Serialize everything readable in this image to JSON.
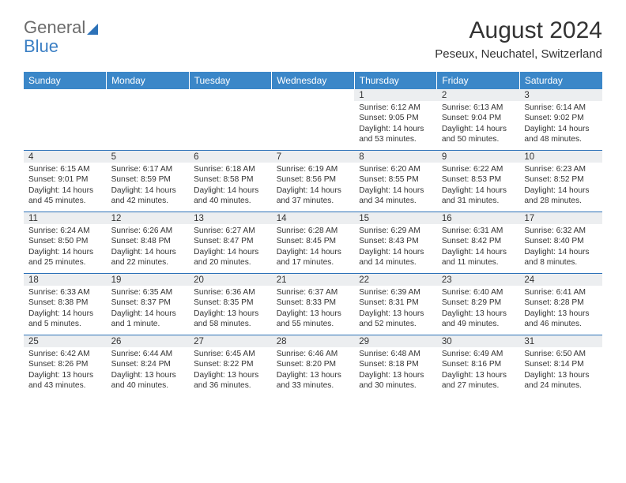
{
  "logo": {
    "part1": "General",
    "part2": "Blue"
  },
  "title": "August 2024",
  "subtitle": "Peseux, Neuchatel, Switzerland",
  "colors": {
    "header_bg": "#3b87c8",
    "rule": "#2d72b8",
    "daynum_bg": "#eceef0",
    "text": "#333333",
    "logo_gray": "#6b6b6b",
    "logo_blue": "#3b7fc4"
  },
  "weekdays": [
    "Sunday",
    "Monday",
    "Tuesday",
    "Wednesday",
    "Thursday",
    "Friday",
    "Saturday"
  ],
  "weeks": [
    [
      {
        "day": "",
        "lines": []
      },
      {
        "day": "",
        "lines": []
      },
      {
        "day": "",
        "lines": []
      },
      {
        "day": "",
        "lines": []
      },
      {
        "day": "1",
        "lines": [
          "Sunrise: 6:12 AM",
          "Sunset: 9:05 PM",
          "Daylight: 14 hours and 53 minutes."
        ]
      },
      {
        "day": "2",
        "lines": [
          "Sunrise: 6:13 AM",
          "Sunset: 9:04 PM",
          "Daylight: 14 hours and 50 minutes."
        ]
      },
      {
        "day": "3",
        "lines": [
          "Sunrise: 6:14 AM",
          "Sunset: 9:02 PM",
          "Daylight: 14 hours and 48 minutes."
        ]
      }
    ],
    [
      {
        "day": "4",
        "lines": [
          "Sunrise: 6:15 AM",
          "Sunset: 9:01 PM",
          "Daylight: 14 hours and 45 minutes."
        ]
      },
      {
        "day": "5",
        "lines": [
          "Sunrise: 6:17 AM",
          "Sunset: 8:59 PM",
          "Daylight: 14 hours and 42 minutes."
        ]
      },
      {
        "day": "6",
        "lines": [
          "Sunrise: 6:18 AM",
          "Sunset: 8:58 PM",
          "Daylight: 14 hours and 40 minutes."
        ]
      },
      {
        "day": "7",
        "lines": [
          "Sunrise: 6:19 AM",
          "Sunset: 8:56 PM",
          "Daylight: 14 hours and 37 minutes."
        ]
      },
      {
        "day": "8",
        "lines": [
          "Sunrise: 6:20 AM",
          "Sunset: 8:55 PM",
          "Daylight: 14 hours and 34 minutes."
        ]
      },
      {
        "day": "9",
        "lines": [
          "Sunrise: 6:22 AM",
          "Sunset: 8:53 PM",
          "Daylight: 14 hours and 31 minutes."
        ]
      },
      {
        "day": "10",
        "lines": [
          "Sunrise: 6:23 AM",
          "Sunset: 8:52 PM",
          "Daylight: 14 hours and 28 minutes."
        ]
      }
    ],
    [
      {
        "day": "11",
        "lines": [
          "Sunrise: 6:24 AM",
          "Sunset: 8:50 PM",
          "Daylight: 14 hours and 25 minutes."
        ]
      },
      {
        "day": "12",
        "lines": [
          "Sunrise: 6:26 AM",
          "Sunset: 8:48 PM",
          "Daylight: 14 hours and 22 minutes."
        ]
      },
      {
        "day": "13",
        "lines": [
          "Sunrise: 6:27 AM",
          "Sunset: 8:47 PM",
          "Daylight: 14 hours and 20 minutes."
        ]
      },
      {
        "day": "14",
        "lines": [
          "Sunrise: 6:28 AM",
          "Sunset: 8:45 PM",
          "Daylight: 14 hours and 17 minutes."
        ]
      },
      {
        "day": "15",
        "lines": [
          "Sunrise: 6:29 AM",
          "Sunset: 8:43 PM",
          "Daylight: 14 hours and 14 minutes."
        ]
      },
      {
        "day": "16",
        "lines": [
          "Sunrise: 6:31 AM",
          "Sunset: 8:42 PM",
          "Daylight: 14 hours and 11 minutes."
        ]
      },
      {
        "day": "17",
        "lines": [
          "Sunrise: 6:32 AM",
          "Sunset: 8:40 PM",
          "Daylight: 14 hours and 8 minutes."
        ]
      }
    ],
    [
      {
        "day": "18",
        "lines": [
          "Sunrise: 6:33 AM",
          "Sunset: 8:38 PM",
          "Daylight: 14 hours and 5 minutes."
        ]
      },
      {
        "day": "19",
        "lines": [
          "Sunrise: 6:35 AM",
          "Sunset: 8:37 PM",
          "Daylight: 14 hours and 1 minute."
        ]
      },
      {
        "day": "20",
        "lines": [
          "Sunrise: 6:36 AM",
          "Sunset: 8:35 PM",
          "Daylight: 13 hours and 58 minutes."
        ]
      },
      {
        "day": "21",
        "lines": [
          "Sunrise: 6:37 AM",
          "Sunset: 8:33 PM",
          "Daylight: 13 hours and 55 minutes."
        ]
      },
      {
        "day": "22",
        "lines": [
          "Sunrise: 6:39 AM",
          "Sunset: 8:31 PM",
          "Daylight: 13 hours and 52 minutes."
        ]
      },
      {
        "day": "23",
        "lines": [
          "Sunrise: 6:40 AM",
          "Sunset: 8:29 PM",
          "Daylight: 13 hours and 49 minutes."
        ]
      },
      {
        "day": "24",
        "lines": [
          "Sunrise: 6:41 AM",
          "Sunset: 8:28 PM",
          "Daylight: 13 hours and 46 minutes."
        ]
      }
    ],
    [
      {
        "day": "25",
        "lines": [
          "Sunrise: 6:42 AM",
          "Sunset: 8:26 PM",
          "Daylight: 13 hours and 43 minutes."
        ]
      },
      {
        "day": "26",
        "lines": [
          "Sunrise: 6:44 AM",
          "Sunset: 8:24 PM",
          "Daylight: 13 hours and 40 minutes."
        ]
      },
      {
        "day": "27",
        "lines": [
          "Sunrise: 6:45 AM",
          "Sunset: 8:22 PM",
          "Daylight: 13 hours and 36 minutes."
        ]
      },
      {
        "day": "28",
        "lines": [
          "Sunrise: 6:46 AM",
          "Sunset: 8:20 PM",
          "Daylight: 13 hours and 33 minutes."
        ]
      },
      {
        "day": "29",
        "lines": [
          "Sunrise: 6:48 AM",
          "Sunset: 8:18 PM",
          "Daylight: 13 hours and 30 minutes."
        ]
      },
      {
        "day": "30",
        "lines": [
          "Sunrise: 6:49 AM",
          "Sunset: 8:16 PM",
          "Daylight: 13 hours and 27 minutes."
        ]
      },
      {
        "day": "31",
        "lines": [
          "Sunrise: 6:50 AM",
          "Sunset: 8:14 PM",
          "Daylight: 13 hours and 24 minutes."
        ]
      }
    ]
  ]
}
